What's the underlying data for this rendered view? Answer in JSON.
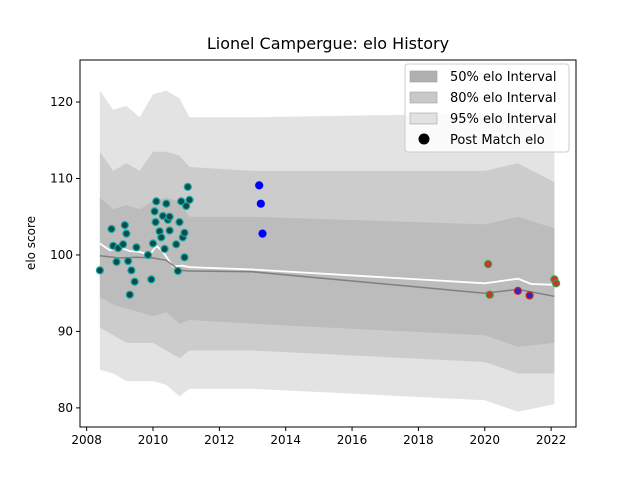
{
  "chart_data": {
    "type": "line",
    "title": "Lionel Campergue: elo History",
    "xlabel": "",
    "ylabel": "elo score",
    "xlim": [
      2007.8,
      2022.75
    ],
    "ylim": [
      77.5,
      125.5
    ],
    "x_ticks": [
      "2008",
      "2010",
      "2012",
      "2014",
      "2016",
      "2018",
      "2020",
      "2022"
    ],
    "y_ticks": [
      "80",
      "90",
      "100",
      "110",
      "120"
    ],
    "grid": false,
    "legend_position": "top-right",
    "legend": [
      {
        "label": "50% elo Interval",
        "color": "#b0b0b0"
      },
      {
        "label": "80% elo Interval",
        "color": "#c8c8c8"
      },
      {
        "label": "95% elo Interval",
        "color": "#e2e2e2"
      },
      {
        "label": "Post Match elo",
        "color": "#000000"
      }
    ],
    "bands": {
      "x": [
        2008.4,
        2008.8,
        2009.2,
        2009.6,
        2010.0,
        2010.4,
        2010.8,
        2011.1,
        2013.0,
        2020.0,
        2021.0,
        2022.1
      ],
      "ci95_upper": [
        121.5,
        119.0,
        119.5,
        118.0,
        121.0,
        121.5,
        120.5,
        118.0,
        118.0,
        118.5,
        119.0,
        118.0
      ],
      "ci95_lower": [
        85.0,
        84.5,
        83.5,
        83.5,
        83.5,
        83.0,
        81.5,
        82.5,
        82.5,
        81.0,
        79.5,
        80.5
      ],
      "ci80_upper": [
        113.5,
        111.0,
        112.0,
        111.0,
        113.5,
        113.5,
        113.0,
        111.5,
        111.0,
        111.0,
        112.0,
        109.5
      ],
      "ci80_lower": [
        90.5,
        89.5,
        88.5,
        88.5,
        88.5,
        87.5,
        86.5,
        87.5,
        87.5,
        86.0,
        84.5,
        84.5
      ],
      "ci50_upper": [
        107.5,
        106.0,
        106.5,
        106.0,
        107.0,
        107.5,
        107.0,
        105.0,
        105.0,
        104.0,
        105.0,
        103.5
      ],
      "ci50_lower": [
        94.5,
        93.5,
        93.0,
        92.5,
        92.0,
        92.5,
        91.0,
        91.5,
        91.0,
        89.5,
        88.0,
        88.5
      ]
    },
    "series": [
      {
        "x": [
          2008.4,
          2008.7,
          2009.0,
          2009.3,
          2009.6,
          2009.9,
          2010.1,
          2010.3,
          2010.6,
          2010.9,
          2011.1,
          2013.0,
          2020.0,
          2021.0,
          2021.4,
          2022.1
        ],
        "values": [
          101.5,
          100.6,
          101.0,
          100.5,
          100.4,
          100.0,
          101.2,
          100.4,
          98.5,
          98.6,
          98.4,
          98.1,
          96.3,
          96.9,
          96.2,
          96.1
        ],
        "color": "#ffffff"
      },
      {
        "x": [
          2008.4,
          2009.0,
          2009.5,
          2010.0,
          2010.4,
          2010.8,
          2011.1,
          2013.0,
          2016.0,
          2020.0,
          2021.0,
          2022.1
        ],
        "values": [
          99.9,
          99.6,
          99.7,
          99.6,
          99.3,
          98.0,
          97.9,
          97.8,
          96.6,
          95.0,
          95.5,
          94.6
        ],
        "color": "#808080"
      }
    ],
    "points": [
      {
        "x": 2008.4,
        "y": 98.0,
        "style": "teal"
      },
      {
        "x": 2008.75,
        "y": 103.4,
        "style": "teal"
      },
      {
        "x": 2008.8,
        "y": 101.2,
        "style": "teal"
      },
      {
        "x": 2008.9,
        "y": 99.1,
        "style": "teal"
      },
      {
        "x": 2008.95,
        "y": 100.9,
        "style": "teal"
      },
      {
        "x": 2009.1,
        "y": 101.4,
        "style": "teal"
      },
      {
        "x": 2009.15,
        "y": 103.9,
        "style": "teal"
      },
      {
        "x": 2009.2,
        "y": 102.8,
        "style": "teal"
      },
      {
        "x": 2009.25,
        "y": 99.2,
        "style": "teal"
      },
      {
        "x": 2009.3,
        "y": 94.8,
        "style": "teal"
      },
      {
        "x": 2009.35,
        "y": 98.0,
        "style": "teal"
      },
      {
        "x": 2009.45,
        "y": 96.5,
        "style": "teal"
      },
      {
        "x": 2009.5,
        "y": 101.0,
        "style": "teal"
      },
      {
        "x": 2009.85,
        "y": 100.0,
        "style": "teal"
      },
      {
        "x": 2009.95,
        "y": 96.8,
        "style": "teal"
      },
      {
        "x": 2010.0,
        "y": 101.5,
        "style": "teal"
      },
      {
        "x": 2010.05,
        "y": 105.7,
        "style": "teal"
      },
      {
        "x": 2010.08,
        "y": 104.3,
        "style": "teal"
      },
      {
        "x": 2010.1,
        "y": 107.0,
        "style": "teal"
      },
      {
        "x": 2010.2,
        "y": 103.1,
        "style": "teal"
      },
      {
        "x": 2010.25,
        "y": 102.3,
        "style": "teal"
      },
      {
        "x": 2010.3,
        "y": 105.1,
        "style": "teal"
      },
      {
        "x": 2010.35,
        "y": 100.8,
        "style": "teal"
      },
      {
        "x": 2010.4,
        "y": 106.7,
        "style": "teal"
      },
      {
        "x": 2010.45,
        "y": 104.6,
        "style": "teal"
      },
      {
        "x": 2010.5,
        "y": 103.2,
        "style": "teal"
      },
      {
        "x": 2010.5,
        "y": 105.0,
        "style": "teal"
      },
      {
        "x": 2010.7,
        "y": 101.4,
        "style": "teal"
      },
      {
        "x": 2010.75,
        "y": 97.9,
        "style": "teal"
      },
      {
        "x": 2010.8,
        "y": 104.3,
        "style": "teal"
      },
      {
        "x": 2010.85,
        "y": 107.0,
        "style": "teal"
      },
      {
        "x": 2010.9,
        "y": 102.3,
        "style": "teal"
      },
      {
        "x": 2010.95,
        "y": 102.9,
        "style": "teal"
      },
      {
        "x": 2010.95,
        "y": 99.7,
        "style": "teal"
      },
      {
        "x": 2011.0,
        "y": 106.4,
        "style": "teal"
      },
      {
        "x": 2011.05,
        "y": 108.9,
        "style": "teal"
      },
      {
        "x": 2011.1,
        "y": 107.2,
        "style": "teal"
      },
      {
        "x": 2013.2,
        "y": 109.1,
        "style": "blue"
      },
      {
        "x": 2013.25,
        "y": 106.7,
        "style": "blue"
      },
      {
        "x": 2013.3,
        "y": 102.8,
        "style": "blue"
      },
      {
        "x": 2020.1,
        "y": 98.8,
        "style": "green-red"
      },
      {
        "x": 2020.15,
        "y": 94.8,
        "style": "green-red"
      },
      {
        "x": 2021.0,
        "y": 95.3,
        "style": "red-blue"
      },
      {
        "x": 2021.35,
        "y": 94.7,
        "style": "red-blue"
      },
      {
        "x": 2022.1,
        "y": 96.8,
        "style": "green-red"
      },
      {
        "x": 2022.15,
        "y": 96.3,
        "style": "green-red"
      }
    ],
    "point_styles": {
      "teal": {
        "fill": "#0b4d4d",
        "stroke": "#19a8a0"
      },
      "blue": {
        "fill": "#0000ff",
        "stroke": "#0000ff"
      },
      "green-red": {
        "fill": "#cc3333",
        "stroke": "#3f9a3f"
      },
      "red-blue": {
        "fill": "#2a2acc",
        "stroke": "#cc2222"
      }
    }
  }
}
